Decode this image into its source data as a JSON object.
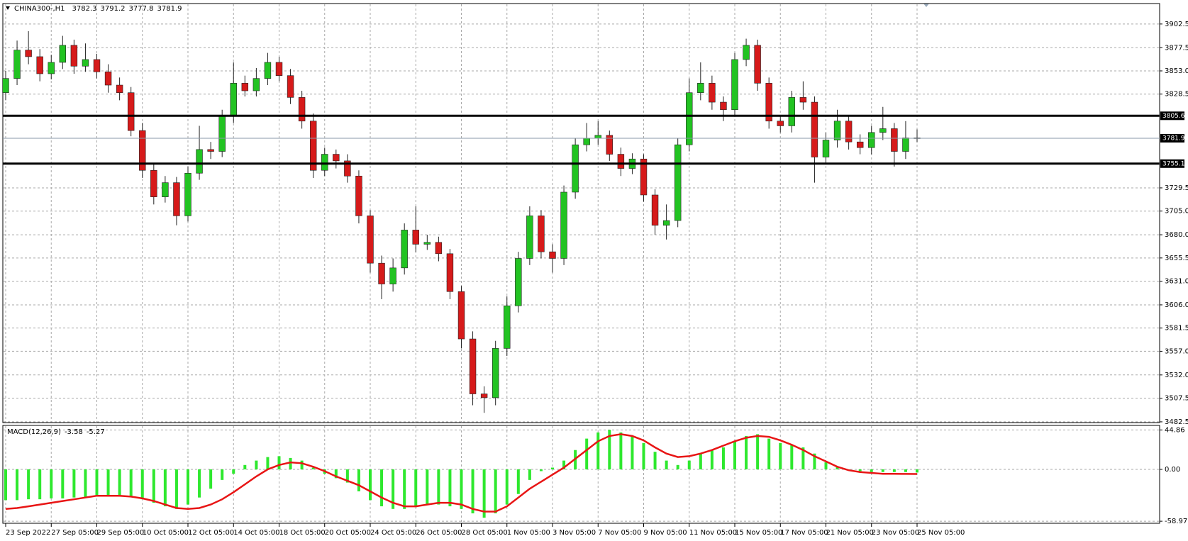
{
  "chart_data": [
    {
      "type": "candlestick",
      "title": "CHINA300-,H1",
      "ohlc": [
        3782.3,
        3791.2,
        3777.8,
        3781.9
      ],
      "categories": [
        "23 Sep 2022",
        null,
        null,
        null,
        "27 Sep 05:00",
        null,
        null,
        null,
        "29 Sep 05:00",
        null,
        null,
        null,
        "10 Oct 05:00",
        null,
        null,
        null,
        "12 Oct 05:00",
        null,
        null,
        null,
        "14 Oct 05:00",
        null,
        null,
        null,
        "18 Oct 05:00",
        null,
        null,
        null,
        "20 Oct 05:00",
        null,
        null,
        null,
        "24 Oct 05:00",
        null,
        null,
        null,
        "26 Oct 05:00",
        null,
        null,
        null,
        "28 Oct 05:00",
        null,
        null,
        null,
        "1 Nov 05:00",
        null,
        null,
        null,
        "3 Nov 05:00",
        null,
        null,
        null,
        "7 Nov 05:00",
        null,
        null,
        null,
        "9 Nov 05:00",
        null,
        null,
        null,
        "11 Nov 05:00",
        null,
        null,
        null,
        "15 Nov 05:00",
        null,
        null,
        null,
        "17 Nov 05:00",
        null,
        null,
        null,
        "21 Nov 05:00",
        null,
        null,
        null,
        "23 Nov 05:00",
        null,
        null,
        null,
        "25 Nov 05:00"
      ],
      "open": [
        3830,
        3845,
        3875,
        3868,
        3850,
        3862,
        3880,
        3858,
        3865,
        3852,
        3838,
        3830,
        3790,
        3748,
        3720,
        3735,
        3700,
        3745,
        3770,
        3768,
        3805,
        3840,
        3832,
        3845,
        3862,
        3848,
        3825,
        3800,
        3748,
        3765,
        3758,
        3742,
        3700,
        3650,
        3628,
        3645,
        3685,
        3670,
        3672,
        3660,
        3620,
        3570,
        3512,
        3508,
        3560,
        3605,
        3655,
        3700,
        3662,
        3655,
        3725,
        3775,
        3782,
        3785,
        3765,
        3750,
        3760,
        3722,
        3690,
        3695,
        3775,
        3830,
        3840,
        3820,
        3812,
        3865,
        3880,
        3840,
        3800,
        3795,
        3825,
        3820,
        3762,
        3780,
        3800,
        3778,
        3772,
        3788,
        3792,
        3768,
        3782.3
      ],
      "high": [
        3853,
        3885,
        3895,
        3876,
        3870,
        3890,
        3886,
        3882,
        3871,
        3860,
        3846,
        3836,
        3798,
        3755,
        3742,
        3741,
        3752,
        3795,
        3778,
        3812,
        3862,
        3848,
        3856,
        3872,
        3868,
        3855,
        3832,
        3808,
        3772,
        3770,
        3765,
        3748,
        3706,
        3658,
        3655,
        3692,
        3710,
        3680,
        3678,
        3665,
        3626,
        3578,
        3520,
        3568,
        3615,
        3662,
        3710,
        3706,
        3670,
        3732,
        3782,
        3798,
        3800,
        3790,
        3772,
        3766,
        3765,
        3728,
        3712,
        3782,
        3845,
        3862,
        3848,
        3826,
        3872,
        3887,
        3886,
        3846,
        3806,
        3832,
        3842,
        3826,
        3788,
        3812,
        3806,
        3786,
        3795,
        3815,
        3798,
        3800,
        3791.2
      ],
      "low": [
        3822,
        3838,
        3860,
        3842,
        3844,
        3855,
        3850,
        3852,
        3845,
        3830,
        3822,
        3784,
        3740,
        3712,
        3714,
        3690,
        3694,
        3738,
        3760,
        3762,
        3798,
        3826,
        3826,
        3838,
        3842,
        3818,
        3792,
        3740,
        3742,
        3750,
        3735,
        3692,
        3640,
        3612,
        3620,
        3638,
        3662,
        3664,
        3652,
        3612,
        3560,
        3500,
        3492,
        3500,
        3552,
        3598,
        3648,
        3655,
        3640,
        3648,
        3718,
        3768,
        3775,
        3758,
        3742,
        3744,
        3715,
        3680,
        3675,
        3688,
        3768,
        3822,
        3812,
        3800,
        3806,
        3858,
        3832,
        3792,
        3788,
        3788,
        3812,
        3735,
        3755,
        3772,
        3770,
        3765,
        3765,
        3780,
        3752,
        3760,
        3777.8
      ],
      "close": [
        3845,
        3875,
        3868,
        3850,
        3862,
        3880,
        3858,
        3865,
        3852,
        3838,
        3830,
        3790,
        3748,
        3720,
        3735,
        3700,
        3745,
        3770,
        3768,
        3805,
        3840,
        3832,
        3845,
        3862,
        3848,
        3825,
        3800,
        3748,
        3765,
        3758,
        3742,
        3700,
        3650,
        3628,
        3645,
        3685,
        3670,
        3672,
        3660,
        3620,
        3570,
        3512,
        3508,
        3560,
        3605,
        3655,
        3700,
        3662,
        3655,
        3725,
        3775,
        3782,
        3785,
        3765,
        3750,
        3760,
        3722,
        3690,
        3695,
        3775,
        3830,
        3840,
        3820,
        3812,
        3865,
        3880,
        3840,
        3800,
        3795,
        3825,
        3820,
        3762,
        3780,
        3800,
        3778,
        3772,
        3788,
        3792,
        3768,
        3782.3,
        3781.9
      ],
      "up_color": "#22c322",
      "down_color": "#d61a1a",
      "wick_color": "#222222",
      "levels": [
        3805.6,
        3755.1
      ],
      "price_line": 3781.9,
      "ylim": [
        3481.7,
        3924.1
      ],
      "yticks": [
        3902.5,
        3877.5,
        {
          "value": 3853,
          "label": "3853.0"
        },
        3828.5,
        {
          "value": 3729.5,
          "label": "3729.5"
        },
        {
          "value": 3705,
          "label": "3705.0"
        },
        {
          "value": 3680,
          "label": "3680.0"
        },
        3655.5,
        {
          "value": 3631,
          "label": "3631.0"
        },
        {
          "value": 3606,
          "label": "3606.0"
        },
        3581.5,
        {
          "value": 3557,
          "label": "3557.0"
        },
        {
          "value": 3532,
          "label": "3532.0"
        },
        3507.5,
        3482.5
      ],
      "grid": true
    },
    {
      "type": "macd",
      "title": "MACD(12,26,9)",
      "current": [
        -3.58,
        -5.27
      ],
      "histogram": {
        "color": "#2ee82e",
        "values": [
          -35,
          -35,
          -34,
          -34,
          -33,
          -33,
          -32,
          -32,
          -31,
          -30,
          -30,
          -31,
          -34,
          -38,
          -42,
          -45,
          -40,
          -32,
          -22,
          -12,
          -5,
          5,
          10,
          14,
          15,
          13,
          10,
          2,
          -5,
          -10,
          -15,
          -25,
          -35,
          -42,
          -45,
          -45,
          -43,
          -40,
          -40,
          -42,
          -45,
          -50,
          -55,
          -50,
          -40,
          -28,
          -12,
          -2,
          2,
          10,
          22,
          35,
          42,
          45,
          42,
          38,
          30,
          20,
          10,
          5,
          10,
          18,
          22,
          25,
          32,
          38,
          40,
          35,
          30,
          28,
          25,
          18,
          8,
          3,
          0,
          -2,
          -3,
          -3,
          -3,
          -3,
          -3.58
        ]
      },
      "signal": {
        "color": "#e81515",
        "values": [
          -45,
          -44,
          -42,
          -40,
          -38,
          -36,
          -34,
          -32,
          -30,
          -30,
          -30,
          -31,
          -33,
          -36,
          -40,
          -44,
          -45,
          -44,
          -40,
          -34,
          -26,
          -17,
          -8,
          0,
          5,
          8,
          7,
          3,
          -2,
          -8,
          -13,
          -18,
          -25,
          -32,
          -38,
          -42,
          -42,
          -40,
          -38,
          -38,
          -40,
          -45,
          -48,
          -48,
          -42,
          -32,
          -22,
          -14,
          -6,
          2,
          12,
          22,
          32,
          38,
          40,
          38,
          33,
          25,
          18,
          14,
          15,
          18,
          22,
          27,
          32,
          36,
          38,
          37,
          33,
          28,
          22,
          15,
          9,
          3,
          -1,
          -3,
          -4,
          -5,
          -5,
          -5.2,
          -5.27
        ]
      },
      "ylim": [
        -61.3,
        50.0
      ],
      "yticks": [
        44.86,
        {
          "value": 0,
          "label": "0.00"
        },
        -58.97
      ],
      "grid": true
    }
  ]
}
